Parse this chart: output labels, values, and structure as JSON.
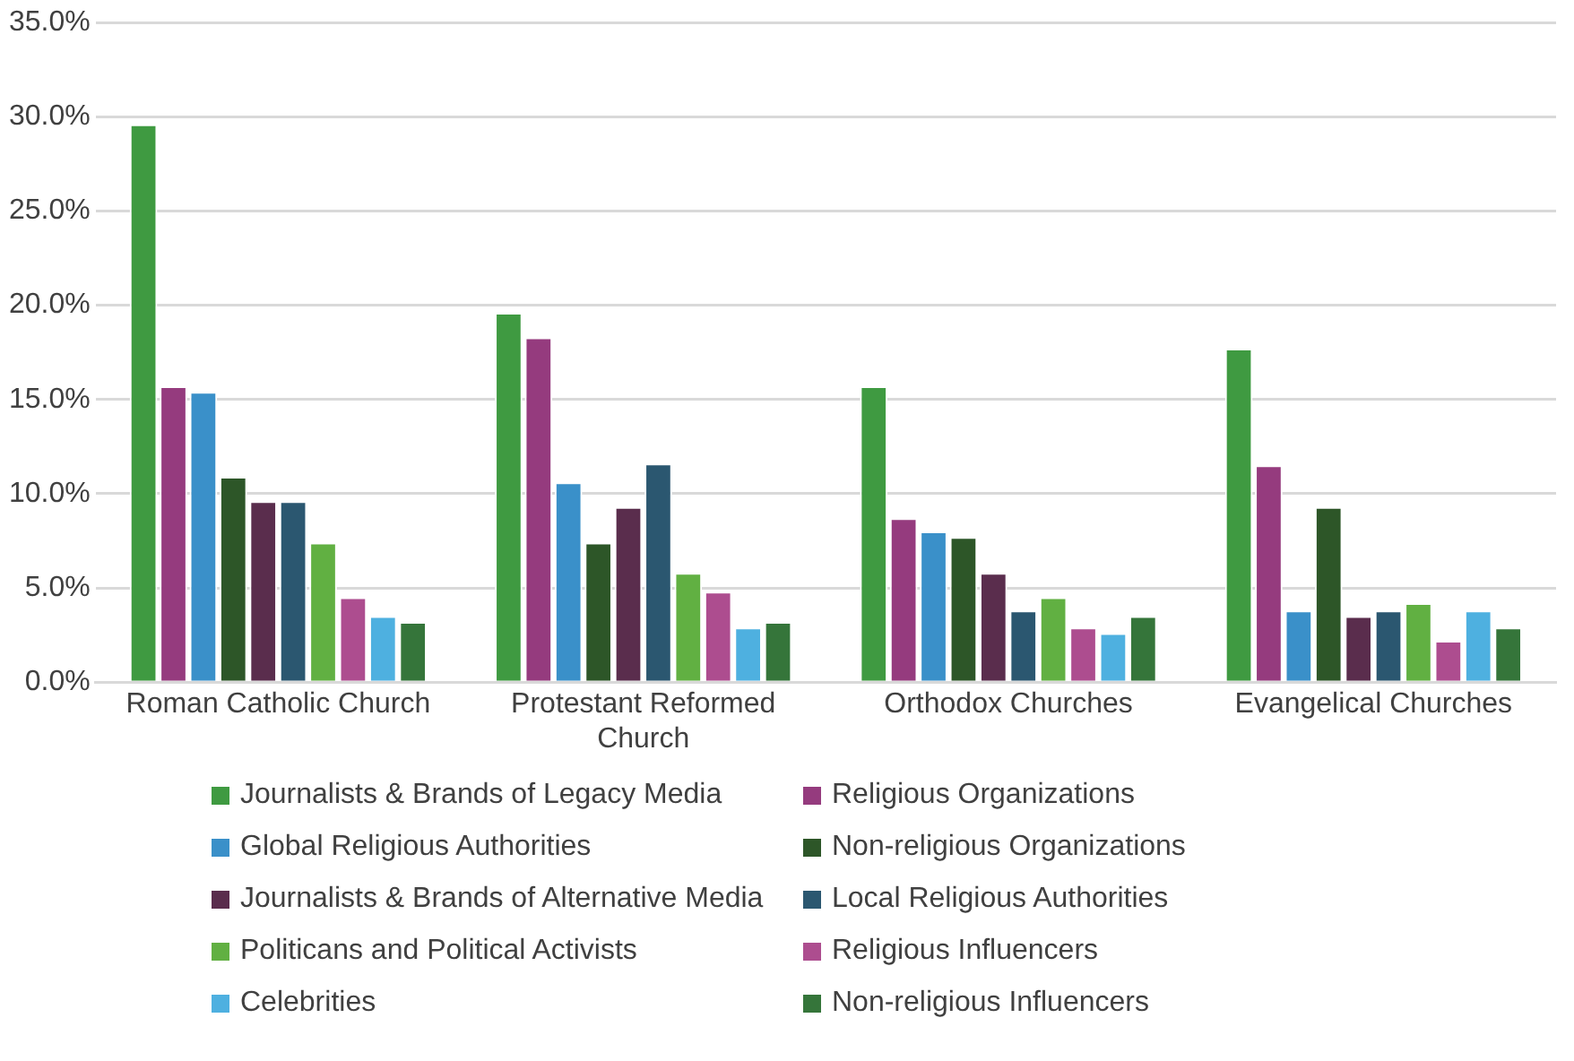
{
  "chart_data": {
    "type": "bar",
    "categories": [
      "Roman Catholic Church",
      "Protestant Reformed Church",
      "Orthodox Churches",
      "Evangelical Churches"
    ],
    "series": [
      {
        "name": "Journalists & Brands of Legacy Media",
        "color": "#3f9a41",
        "values": [
          29.6,
          19.6,
          15.7,
          17.7
        ]
      },
      {
        "name": "Religious Organizations",
        "color": "#953b7e",
        "values": [
          15.7,
          18.3,
          8.7,
          11.5
        ]
      },
      {
        "name": "Global Religious Authorities",
        "color": "#3a90c9",
        "values": [
          15.4,
          10.6,
          8.0,
          3.8
        ]
      },
      {
        "name": "Non-religious Organizations",
        "color": "#2d5628",
        "values": [
          10.9,
          7.4,
          7.7,
          9.3
        ]
      },
      {
        "name": "Journalists & Brands of Alternative Media",
        "color": "#5a2d4d",
        "values": [
          9.6,
          9.3,
          5.8,
          3.5
        ]
      },
      {
        "name": "Local Religious Authorities",
        "color": "#2b5770",
        "values": [
          9.6,
          11.6,
          3.8,
          3.8
        ]
      },
      {
        "name": "Politicans and Political Activists",
        "color": "#61b042",
        "values": [
          7.4,
          5.8,
          4.5,
          4.2
        ]
      },
      {
        "name": "Religious Influencers",
        "color": "#ad4d8f",
        "values": [
          4.5,
          4.8,
          2.9,
          2.2
        ]
      },
      {
        "name": "Celebrities",
        "color": "#4eb0e0",
        "values": [
          3.5,
          2.9,
          2.6,
          3.8
        ]
      },
      {
        "name": "Non-religious Influencers",
        "color": "#35753a",
        "values": [
          3.2,
          3.2,
          3.5,
          2.9
        ]
      }
    ],
    "ylim": [
      0,
      35
    ],
    "yticks": [
      {
        "value": 0,
        "label": "0.0%"
      },
      {
        "value": 5,
        "label": "5.0%"
      },
      {
        "value": 10,
        "label": "10.0%"
      },
      {
        "value": 15,
        "label": "15.0%"
      },
      {
        "value": 20,
        "label": "20.0%"
      },
      {
        "value": 25,
        "label": "25.0%"
      },
      {
        "value": 30,
        "label": "30.0%"
      },
      {
        "value": 35,
        "label": "35.0%"
      }
    ],
    "grid": "y",
    "legend": "bottom"
  }
}
